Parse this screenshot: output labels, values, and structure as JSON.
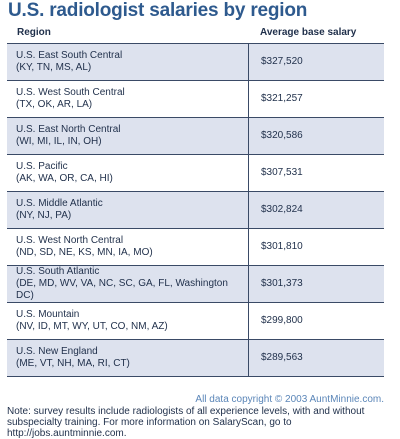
{
  "chart_data": {
    "type": "table",
    "title": "U.S. radiologist salaries by region",
    "columns": [
      "Region",
      "Average base salary"
    ],
    "rows": [
      {
        "name": "U.S. East South Central",
        "states": "(KY, TN, MS, AL)",
        "salary": "$327,520",
        "value": 327520
      },
      {
        "name": "U.S. West South Central",
        "states": "(TX, OK, AR, LA)",
        "salary": "$321,257",
        "value": 321257
      },
      {
        "name": "U.S. East North Central",
        "states": "(WI, MI, IL, IN, OH)",
        "salary": "$320,586",
        "value": 320586
      },
      {
        "name": "U.S. Pacific",
        "states": "(AK, WA, OR, CA, HI)",
        "salary": "$307,531",
        "value": 307531
      },
      {
        "name": "U.S. Middle Atlantic",
        "states": "(NY, NJ, PA)",
        "salary": "$302,824",
        "value": 302824
      },
      {
        "name": "U.S. West North Central",
        "states": "(ND, SD, NE, KS, MN, IA, MO)",
        "salary": "$301,810",
        "value": 301810
      },
      {
        "name": "U.S. South Atlantic",
        "states": "(DE, MD, WV, VA, NC, SC, GA, FL, Washington DC)",
        "salary": "$301,373",
        "value": 301373
      },
      {
        "name": "U.S. Mountain",
        "states": "(NV, ID, MT, WY, UT, CO, NM, AZ)",
        "salary": "$299,800",
        "value": 299800
      },
      {
        "name": "U.S. New England",
        "states": "(ME, VT, NH, MA, RI, CT)",
        "salary": "$289,563",
        "value": 289563
      }
    ]
  },
  "footer": {
    "copyright": "All data copyright © 2003 AuntMinnie.com.",
    "note": "Note: survey results include radiologists of all experience levels, with and without subspecialty training. For more information on SalaryScan, go to http://jobs.auntminnie.com."
  },
  "colors": {
    "title": "#2e5a8e",
    "stripe": "#dde2ee",
    "rule": "#3a4a66",
    "copyright": "#5b86b8"
  }
}
